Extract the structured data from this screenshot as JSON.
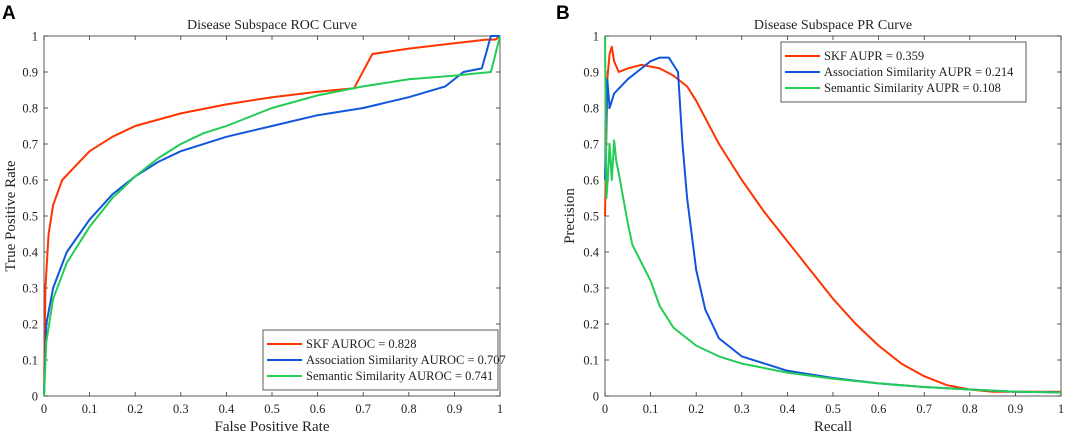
{
  "chart_data": [
    {
      "panel_label": "A",
      "type": "line",
      "title": "Disease Subspace ROC Curve",
      "xlabel": "False Positive Rate",
      "ylabel": "True Positive Rate",
      "xlim": [
        0,
        1
      ],
      "ylim": [
        0,
        1
      ],
      "xticks": [
        "0",
        "0.1",
        "0.2",
        "0.3",
        "0.4",
        "0.5",
        "0.6",
        "0.7",
        "0.8",
        "0.9",
        "1"
      ],
      "yticks": [
        "0",
        "0.1",
        "0.2",
        "0.3",
        "0.4",
        "0.5",
        "0.6",
        "0.7",
        "0.8",
        "0.9",
        "1"
      ],
      "grid": false,
      "legend_position": "bottom-right",
      "series": [
        {
          "name": "SKF AUROC = 0.828",
          "color": "#ff3300",
          "x": [
            0,
            0.003,
            0.01,
            0.02,
            0.04,
            0.07,
            0.1,
            0.15,
            0.2,
            0.3,
            0.4,
            0.5,
            0.6,
            0.68,
            0.72,
            0.8,
            0.9,
            0.97,
            0.99,
            1
          ],
          "y": [
            0,
            0.3,
            0.45,
            0.53,
            0.6,
            0.64,
            0.68,
            0.72,
            0.75,
            0.785,
            0.81,
            0.83,
            0.845,
            0.855,
            0.95,
            0.965,
            0.98,
            0.99,
            0.99,
            1
          ]
        },
        {
          "name": "Association Similarity AUROC = 0.707",
          "color": "#1155dd",
          "x": [
            0,
            0.005,
            0.02,
            0.05,
            0.1,
            0.15,
            0.2,
            0.25,
            0.3,
            0.4,
            0.5,
            0.6,
            0.7,
            0.8,
            0.88,
            0.92,
            0.96,
            0.98,
            1
          ],
          "y": [
            0,
            0.2,
            0.3,
            0.4,
            0.49,
            0.56,
            0.61,
            0.65,
            0.68,
            0.72,
            0.75,
            0.78,
            0.8,
            0.83,
            0.86,
            0.9,
            0.91,
            1,
            1
          ]
        },
        {
          "name": "Semantic Similarity AUROC = 0.741",
          "color": "#22cc55",
          "x": [
            0,
            0.005,
            0.02,
            0.05,
            0.1,
            0.15,
            0.2,
            0.25,
            0.3,
            0.35,
            0.4,
            0.45,
            0.5,
            0.6,
            0.7,
            0.8,
            0.9,
            0.98,
            1
          ],
          "y": [
            0,
            0.15,
            0.27,
            0.37,
            0.47,
            0.55,
            0.61,
            0.66,
            0.7,
            0.73,
            0.75,
            0.775,
            0.8,
            0.835,
            0.86,
            0.88,
            0.89,
            0.9,
            1
          ]
        }
      ]
    },
    {
      "panel_label": "B",
      "type": "line",
      "title": "Disease Subspace PR Curve",
      "xlabel": "Recall",
      "ylabel": "Precision",
      "xlim": [
        0,
        1
      ],
      "ylim": [
        0,
        1
      ],
      "xticks": [
        "0",
        "0.1",
        "0.2",
        "0.3",
        "0.4",
        "0.5",
        "0.6",
        "0.7",
        "0.8",
        "0.9",
        "1"
      ],
      "yticks": [
        "0",
        "0.1",
        "0.2",
        "0.3",
        "0.4",
        "0.5",
        "0.6",
        "0.7",
        "0.8",
        "0.9",
        "1"
      ],
      "grid": false,
      "legend_position": "top-right",
      "series": [
        {
          "name": "SKF AUPR = 0.359",
          "color": "#ff3300",
          "x": [
            0,
            0.005,
            0.01,
            0.015,
            0.02,
            0.03,
            0.05,
            0.08,
            0.12,
            0.15,
            0.18,
            0.2,
            0.25,
            0.3,
            0.35,
            0.4,
            0.45,
            0.5,
            0.55,
            0.6,
            0.65,
            0.7,
            0.75,
            0.8,
            0.85,
            0.9,
            1
          ],
          "y": [
            0.5,
            0.88,
            0.95,
            0.97,
            0.93,
            0.9,
            0.91,
            0.92,
            0.91,
            0.89,
            0.86,
            0.82,
            0.7,
            0.6,
            0.51,
            0.43,
            0.35,
            0.27,
            0.2,
            0.14,
            0.09,
            0.055,
            0.03,
            0.018,
            0.012,
            0.012,
            0.012
          ]
        },
        {
          "name": "Association Similarity AUPR = 0.214",
          "color": "#1155dd",
          "x": [
            0,
            0.005,
            0.01,
            0.02,
            0.05,
            0.08,
            0.1,
            0.12,
            0.14,
            0.16,
            0.17,
            0.18,
            0.2,
            0.22,
            0.25,
            0.3,
            0.35,
            0.4,
            0.5,
            0.6,
            0.7,
            0.8,
            0.9,
            1
          ],
          "y": [
            0.6,
            0.88,
            0.8,
            0.84,
            0.88,
            0.91,
            0.93,
            0.94,
            0.94,
            0.9,
            0.7,
            0.55,
            0.35,
            0.24,
            0.16,
            0.11,
            0.09,
            0.07,
            0.05,
            0.035,
            0.025,
            0.018,
            0.012,
            0.01
          ]
        },
        {
          "name": "Semantic Similarity AUPR = 0.108",
          "color": "#22cc55",
          "x": [
            0,
            0.003,
            0.006,
            0.01,
            0.015,
            0.02,
            0.025,
            0.03,
            0.04,
            0.05,
            0.06,
            0.08,
            0.1,
            0.12,
            0.15,
            0.2,
            0.25,
            0.3,
            0.4,
            0.5,
            0.6,
            0.7,
            0.8,
            0.9,
            1
          ],
          "y": [
            1,
            0.55,
            0.6,
            0.7,
            0.6,
            0.71,
            0.65,
            0.62,
            0.55,
            0.48,
            0.42,
            0.37,
            0.32,
            0.25,
            0.19,
            0.14,
            0.11,
            0.09,
            0.065,
            0.048,
            0.035,
            0.025,
            0.018,
            0.012,
            0.01
          ]
        }
      ]
    }
  ]
}
